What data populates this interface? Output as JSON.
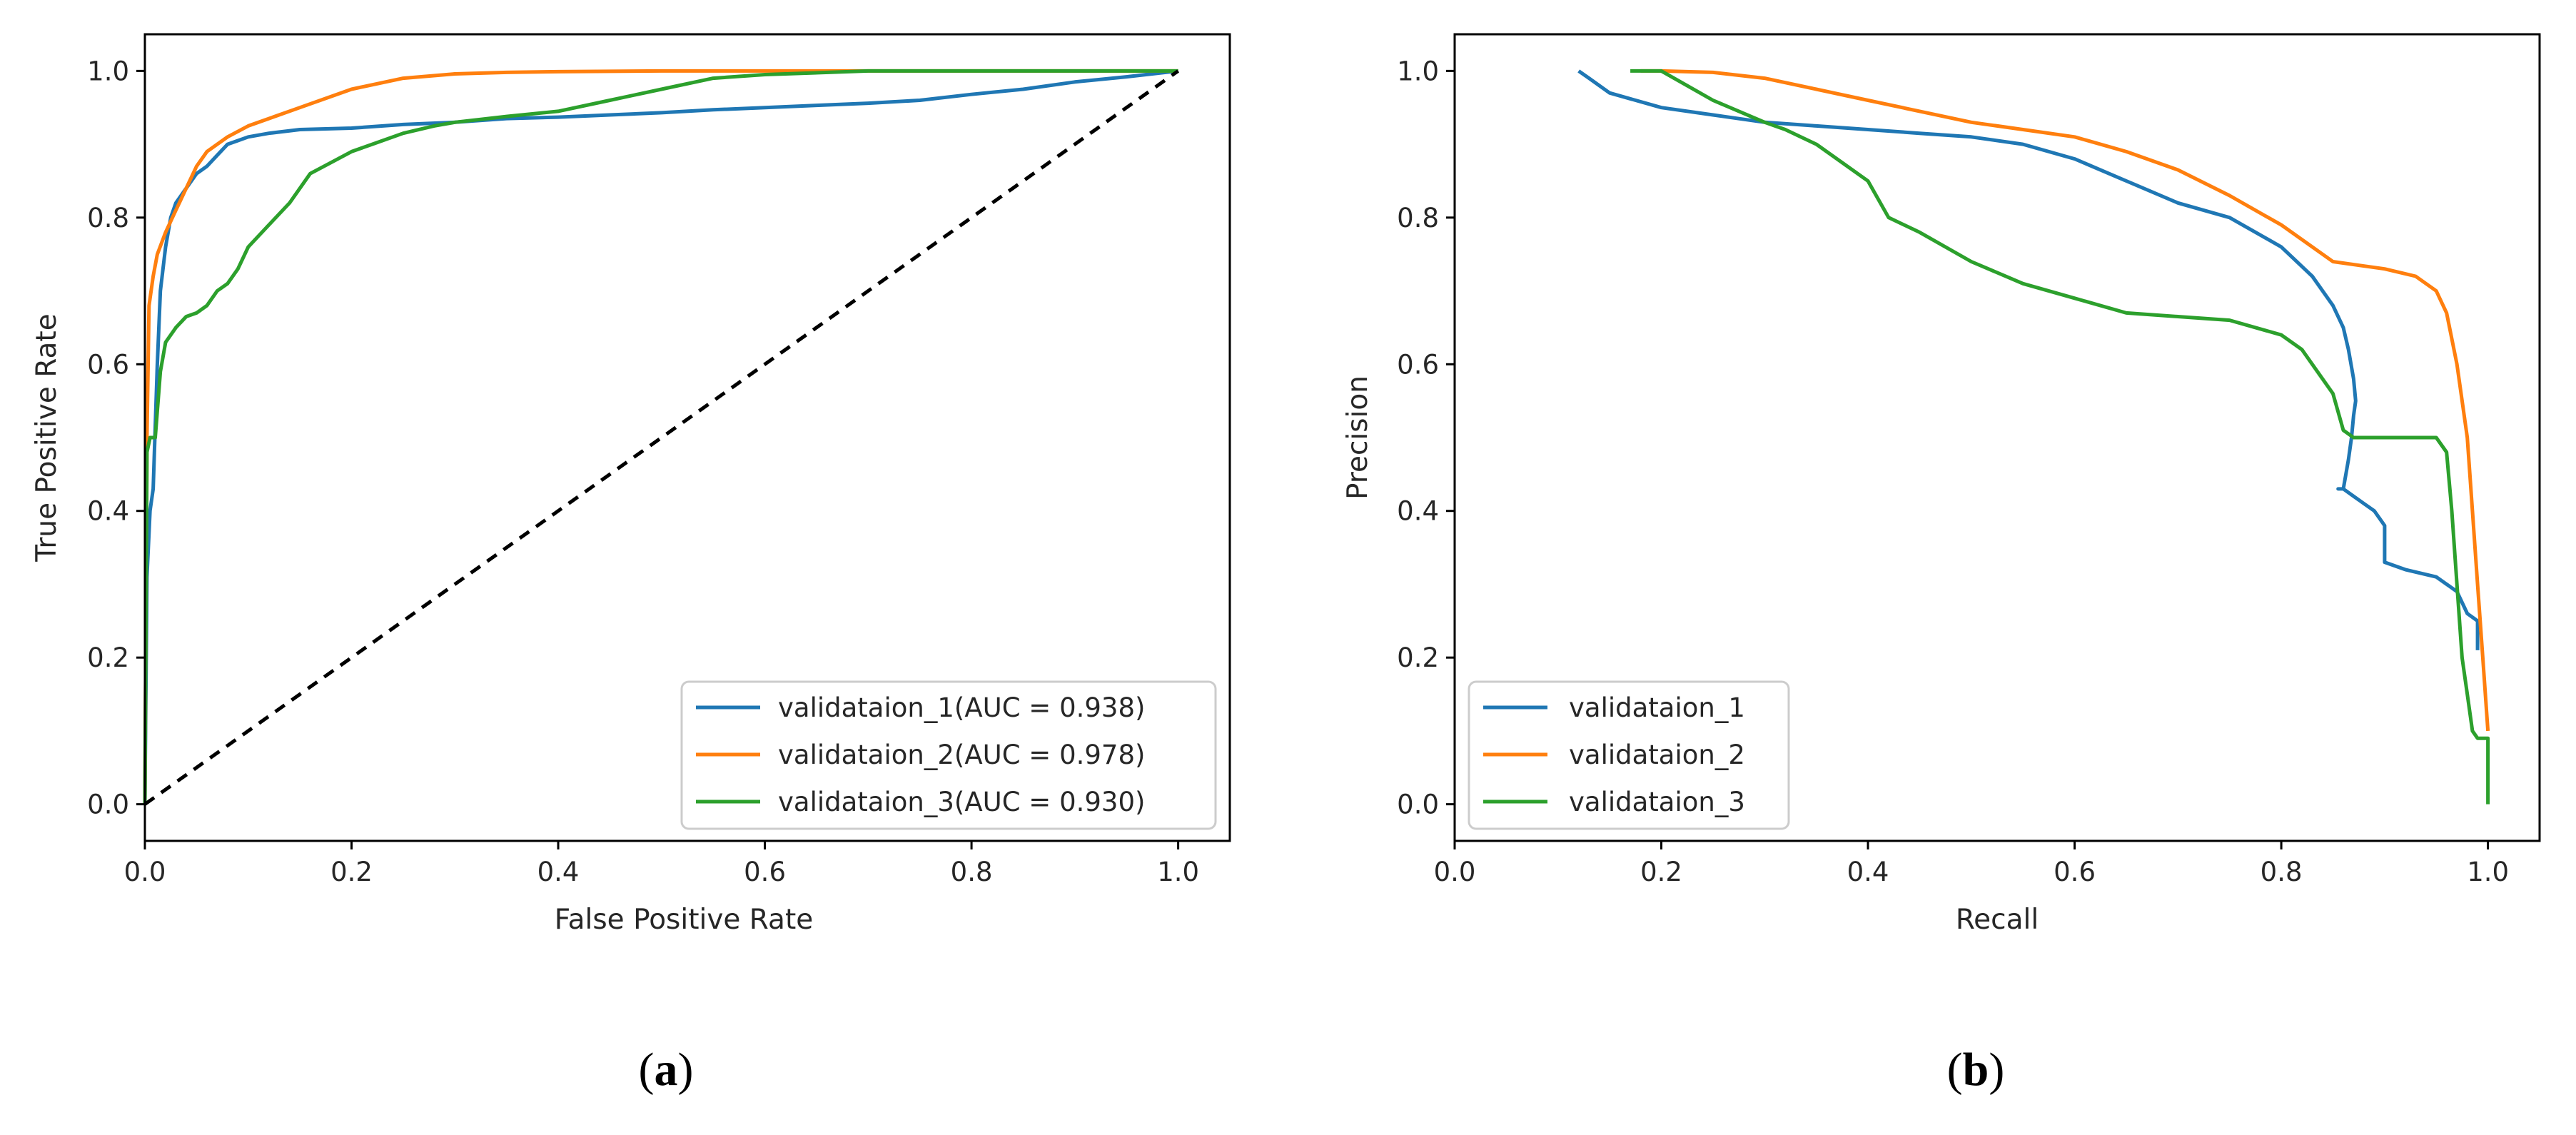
{
  "colors": {
    "validataion_1": "#1f77b4",
    "validataion_2": "#ff7f0e",
    "validataion_3": "#2ca02c",
    "diagonal": "#000000"
  },
  "chart_data": [
    {
      "type": "line",
      "caption": "(a)",
      "title": "",
      "xlabel": "False Positive Rate",
      "ylabel": "True Positive Rate",
      "xlim": [
        0.0,
        1.05
      ],
      "ylim": [
        -0.05,
        1.05
      ],
      "xticks": [
        "0.0",
        "0.2",
        "0.4",
        "0.6",
        "0.8",
        "1.0"
      ],
      "yticks": [
        "0.0",
        "0.2",
        "0.4",
        "0.6",
        "0.8",
        "1.0"
      ],
      "grid": false,
      "legend_location": "lower-right",
      "reference_line": {
        "name": "chance",
        "style": "dashed",
        "x": [
          0,
          1
        ],
        "y": [
          0,
          1
        ]
      },
      "series": [
        {
          "name": "validataion_1(AUC = 0.938)",
          "color_key": "validataion_1",
          "x": [
            0,
            0.002,
            0.005,
            0.008,
            0.012,
            0.015,
            0.02,
            0.025,
            0.03,
            0.04,
            0.05,
            0.06,
            0.07,
            0.08,
            0.09,
            0.1,
            0.12,
            0.15,
            0.2,
            0.25,
            0.3,
            0.35,
            0.4,
            0.45,
            0.5,
            0.55,
            0.6,
            0.65,
            0.7,
            0.75,
            0.8,
            0.85,
            0.9,
            0.95,
            1.0
          ],
          "y": [
            0,
            0.31,
            0.4,
            0.43,
            0.6,
            0.7,
            0.76,
            0.8,
            0.82,
            0.84,
            0.86,
            0.87,
            0.885,
            0.9,
            0.905,
            0.91,
            0.915,
            0.92,
            0.922,
            0.927,
            0.93,
            0.935,
            0.937,
            0.94,
            0.943,
            0.947,
            0.95,
            0.953,
            0.956,
            0.96,
            0.968,
            0.975,
            0.985,
            0.992,
            1.0
          ]
        },
        {
          "name": "validataion_2(AUC = 0.978)",
          "color_key": "validataion_2",
          "x": [
            0,
            0.002,
            0.004,
            0.008,
            0.012,
            0.02,
            0.03,
            0.04,
            0.05,
            0.06,
            0.08,
            0.1,
            0.12,
            0.15,
            0.2,
            0.25,
            0.3,
            0.35,
            0.4,
            0.5,
            0.6,
            0.8,
            1.0
          ],
          "y": [
            0,
            0.5,
            0.68,
            0.72,
            0.75,
            0.78,
            0.81,
            0.84,
            0.87,
            0.89,
            0.91,
            0.925,
            0.935,
            0.95,
            0.975,
            0.99,
            0.996,
            0.998,
            0.999,
            1.0,
            1.0,
            1.0,
            1.0
          ]
        },
        {
          "name": "validataion_3(AUC = 0.930)",
          "color_key": "validataion_3",
          "x": [
            0,
            0.002,
            0.005,
            0.01,
            0.015,
            0.02,
            0.03,
            0.04,
            0.05,
            0.06,
            0.07,
            0.08,
            0.09,
            0.1,
            0.12,
            0.14,
            0.16,
            0.18,
            0.2,
            0.22,
            0.25,
            0.28,
            0.3,
            0.35,
            0.4,
            0.45,
            0.5,
            0.55,
            0.6,
            0.7,
            0.8,
            1.0
          ],
          "y": [
            0,
            0.48,
            0.5,
            0.5,
            0.59,
            0.63,
            0.65,
            0.665,
            0.67,
            0.68,
            0.7,
            0.71,
            0.73,
            0.76,
            0.79,
            0.82,
            0.86,
            0.875,
            0.89,
            0.9,
            0.915,
            0.925,
            0.93,
            0.938,
            0.945,
            0.96,
            0.975,
            0.99,
            0.995,
            1.0,
            1.0,
            1.0
          ]
        }
      ]
    },
    {
      "type": "line",
      "caption": "(b)",
      "title": "",
      "xlabel": "Recall",
      "ylabel": "Precision",
      "xlim": [
        0.0,
        1.05
      ],
      "ylim": [
        -0.05,
        1.05
      ],
      "xticks": [
        "0.0",
        "0.2",
        "0.4",
        "0.6",
        "0.8",
        "1.0"
      ],
      "yticks": [
        "0.0",
        "0.2",
        "0.4",
        "0.6",
        "0.8",
        "1.0"
      ],
      "grid": false,
      "legend_location": "lower-left",
      "series": [
        {
          "name": "validataion_1",
          "color_key": "validataion_1",
          "x": [
            0.12,
            0.13,
            0.15,
            0.2,
            0.25,
            0.3,
            0.35,
            0.4,
            0.45,
            0.5,
            0.55,
            0.6,
            0.65,
            0.7,
            0.75,
            0.8,
            0.83,
            0.85,
            0.86,
            0.865,
            0.87,
            0.872,
            0.87,
            0.868,
            0.865,
            0.86,
            0.855,
            0.86,
            0.87,
            0.88,
            0.89,
            0.9,
            0.9,
            0.92,
            0.95,
            0.97,
            0.98,
            0.99,
            0.99
          ],
          "y": [
            1.0,
            0.99,
            0.97,
            0.95,
            0.94,
            0.93,
            0.925,
            0.92,
            0.915,
            0.91,
            0.9,
            0.88,
            0.85,
            0.82,
            0.8,
            0.76,
            0.72,
            0.68,
            0.65,
            0.62,
            0.58,
            0.55,
            0.53,
            0.5,
            0.47,
            0.43,
            0.43,
            0.43,
            0.42,
            0.41,
            0.4,
            0.38,
            0.33,
            0.32,
            0.31,
            0.29,
            0.26,
            0.25,
            0.21
          ]
        },
        {
          "name": "validataion_2",
          "color_key": "validataion_2",
          "x": [
            0.18,
            0.2,
            0.25,
            0.3,
            0.35,
            0.4,
            0.45,
            0.5,
            0.55,
            0.6,
            0.65,
            0.7,
            0.75,
            0.8,
            0.85,
            0.9,
            0.93,
            0.95,
            0.96,
            0.97,
            0.98,
            0.985,
            0.99,
            0.995,
            1.0
          ],
          "y": [
            1.0,
            1.0,
            0.998,
            0.99,
            0.975,
            0.96,
            0.945,
            0.93,
            0.92,
            0.91,
            0.89,
            0.865,
            0.83,
            0.79,
            0.74,
            0.73,
            0.72,
            0.7,
            0.67,
            0.6,
            0.5,
            0.4,
            0.3,
            0.2,
            0.1
          ]
        },
        {
          "name": "validataion_3",
          "color_key": "validataion_3",
          "x": [
            0.17,
            0.2,
            0.25,
            0.3,
            0.32,
            0.35,
            0.38,
            0.4,
            0.42,
            0.45,
            0.5,
            0.55,
            0.6,
            0.65,
            0.7,
            0.75,
            0.8,
            0.82,
            0.83,
            0.85,
            0.86,
            0.87,
            0.9,
            0.93,
            0.95,
            0.96,
            0.965,
            0.97,
            0.975,
            0.98,
            0.985,
            0.99,
            1.0,
            1.0
          ],
          "y": [
            1.0,
            1.0,
            0.96,
            0.93,
            0.92,
            0.9,
            0.87,
            0.85,
            0.8,
            0.78,
            0.74,
            0.71,
            0.69,
            0.67,
            0.665,
            0.66,
            0.64,
            0.62,
            0.6,
            0.56,
            0.51,
            0.5,
            0.5,
            0.5,
            0.5,
            0.48,
            0.4,
            0.3,
            0.2,
            0.15,
            0.1,
            0.09,
            0.09,
            0.0
          ]
        }
      ]
    }
  ]
}
